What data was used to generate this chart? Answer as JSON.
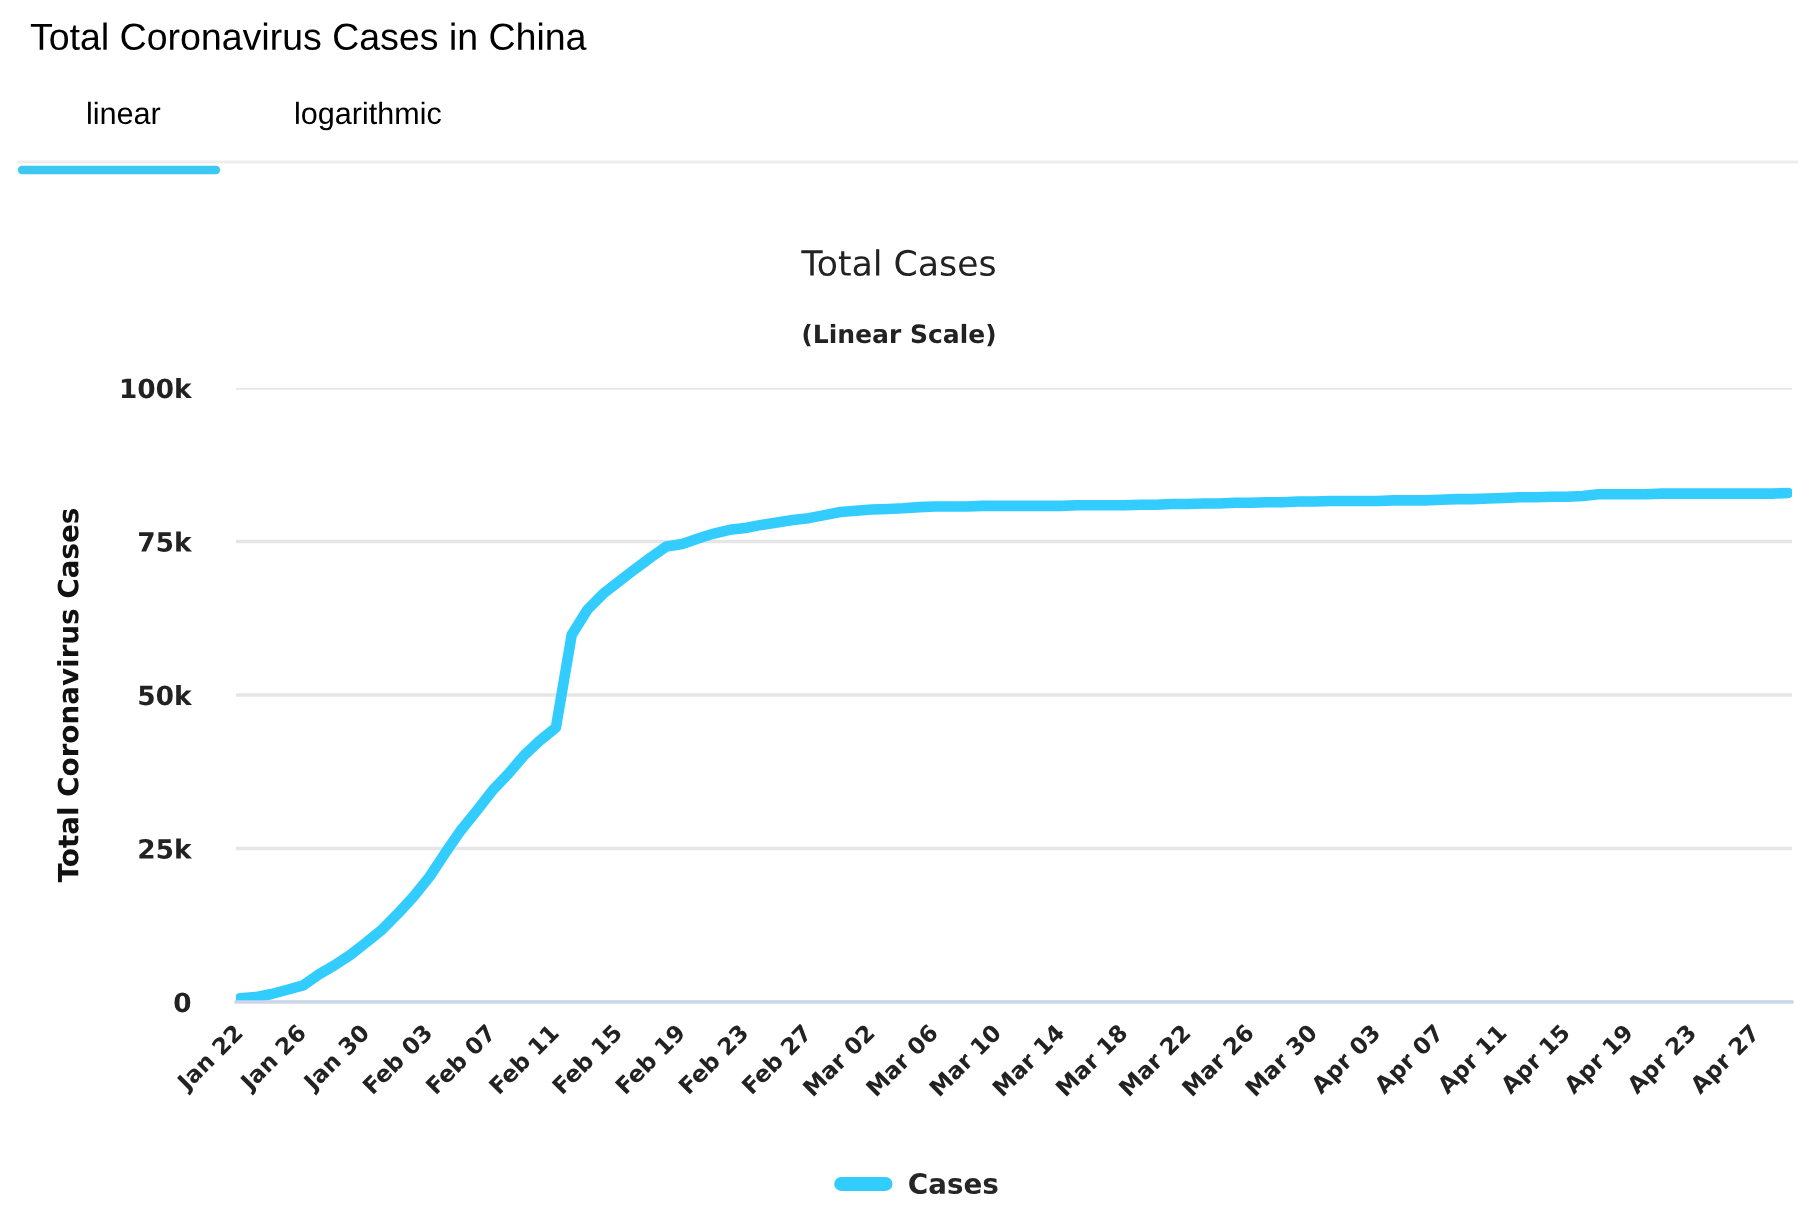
{
  "chart_data": {
    "type": "line",
    "title": "Total Cases",
    "subtitle": "(Linear Scale)",
    "ylabel": "Total Coronavirus Cases",
    "annotations": [
      "Total Coronavirus Cases in China",
      "linear",
      "logarithmic"
    ],
    "categories": [
      "Jan 22",
      null,
      null,
      null,
      "Jan 26",
      null,
      null,
      null,
      "Jan 30",
      null,
      null,
      null,
      "Feb 03",
      null,
      null,
      null,
      "Feb 07",
      null,
      null,
      null,
      "Feb 11",
      null,
      null,
      null,
      "Feb 15",
      null,
      null,
      null,
      "Feb 19",
      null,
      null,
      null,
      "Feb 23",
      null,
      null,
      null,
      "Feb 27",
      null,
      null,
      null,
      "Mar 02",
      null,
      null,
      null,
      "Mar 06",
      null,
      null,
      null,
      "Mar 10",
      null,
      null,
      null,
      "Mar 14",
      null,
      null,
      null,
      "Mar 18",
      null,
      null,
      null,
      "Mar 22",
      null,
      null,
      null,
      "Mar 26",
      null,
      null,
      null,
      "Mar 30",
      null,
      null,
      null,
      "Apr 03",
      null,
      null,
      null,
      "Apr 07",
      null,
      null,
      null,
      "Apr 11",
      null,
      null,
      null,
      "Apr 15",
      null,
      null,
      null,
      "Apr 19",
      null,
      null,
      null,
      "Apr 23",
      null,
      null,
      null,
      "Apr 27",
      null,
      null
    ],
    "series": [
      {
        "name": "Cases",
        "color": "#33ccff",
        "values": [
          600,
          800,
          1300,
          2000,
          2700,
          4500,
          6000,
          7700,
          9700,
          11800,
          14400,
          17200,
          20400,
          24300,
          28000,
          31200,
          34500,
          37200,
          40200,
          42600,
          44700,
          59800,
          63900,
          66500,
          68500,
          70500,
          72400,
          74200,
          74600,
          75500,
          76300,
          76900,
          77200,
          77700,
          78100,
          78500,
          78800,
          79300,
          79800,
          80000,
          80200,
          80300,
          80400,
          80600,
          80700,
          80700,
          80700,
          80800,
          80800,
          80800,
          80800,
          80800,
          80800,
          80900,
          80900,
          80900,
          80900,
          81000,
          81000,
          81100,
          81100,
          81200,
          81200,
          81300,
          81300,
          81400,
          81400,
          81500,
          81500,
          81600,
          81600,
          81600,
          81600,
          81700,
          81700,
          81700,
          81800,
          81900,
          81900,
          82000,
          82100,
          82200,
          82200,
          82300,
          82300,
          82400,
          82700,
          82700,
          82700,
          82700,
          82800,
          82800,
          82800,
          82800,
          82800,
          82800,
          82800,
          82800,
          82900
        ]
      }
    ],
    "ylim": [
      0,
      100000
    ],
    "yticks": [
      0,
      {
        "value": 25000,
        "label": "25k"
      },
      {
        "value": 50000,
        "label": "50k"
      },
      {
        "value": 75000,
        "label": "75k"
      },
      {
        "value": 100000,
        "label": "100k"
      }
    ],
    "grid": "y",
    "legend": "bottom",
    "line_style": "solid"
  }
}
